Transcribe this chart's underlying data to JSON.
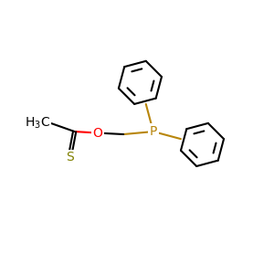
{
  "bg_color": "#ffffff",
  "bond_color": "#000000",
  "p_color": "#b8860b",
  "o_color": "#ff0000",
  "s_color": "#808000",
  "p_label": "P",
  "o_label": "O",
  "s_label": "S",
  "fig_width": 3.0,
  "fig_height": 3.0,
  "dpi": 100,
  "lw": 1.5,
  "font_size": 10
}
